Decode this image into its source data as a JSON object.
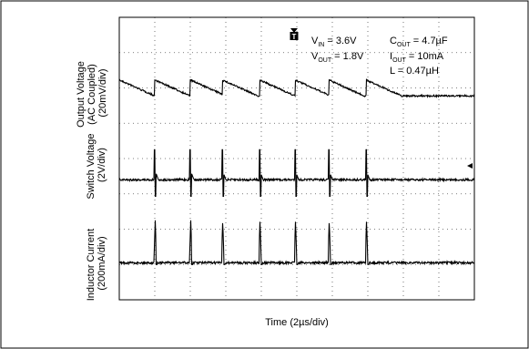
{
  "chart_data": {
    "type": "line",
    "title": "",
    "xlabel": "Time (2µs/div)",
    "x_divisions": 10,
    "y_divisions": 8,
    "grid": true,
    "annotations": [
      {
        "id": "vin",
        "main": "V",
        "sub": "IN",
        "rest": " = 3.6V"
      },
      {
        "id": "vout",
        "main": "V",
        "sub": "OUT",
        "rest": " = 1.8V"
      },
      {
        "id": "cout",
        "main": "C",
        "sub": "OUT",
        "rest": " = 4.7µF"
      },
      {
        "id": "iout",
        "main": "I",
        "sub": "OUT",
        "rest": " = 10mA"
      },
      {
        "id": "l",
        "main": "L = 0.47µH",
        "sub": "",
        "rest": ""
      }
    ],
    "trigger_marker": "T",
    "series": [
      {
        "name": "Output Voltage",
        "ylabel_lines": [
          "Output Voltage",
          "(AC Coupled)",
          "(20mV/div)"
        ],
        "waveform": "sawtooth",
        "baseline_div": 2.0,
        "amplitude_div": 0.45
      },
      {
        "name": "Switch Voltage",
        "ylabel_lines": [
          "Switch Voltage",
          "(2V/div)"
        ],
        "waveform": "switch-spike",
        "baseline_div": 4.6,
        "amplitude_div": 0.85
      },
      {
        "name": "Inductor Current",
        "ylabel_lines": [
          "Inductor Current",
          "(200mA/div)"
        ],
        "waveform": "current-pulse",
        "baseline_div": 6.95,
        "amplitude_div": 1.2
      }
    ],
    "switching_events_div": [
      1.0,
      2.0,
      2.9,
      3.95,
      4.95,
      5.9,
      6.95
    ]
  }
}
